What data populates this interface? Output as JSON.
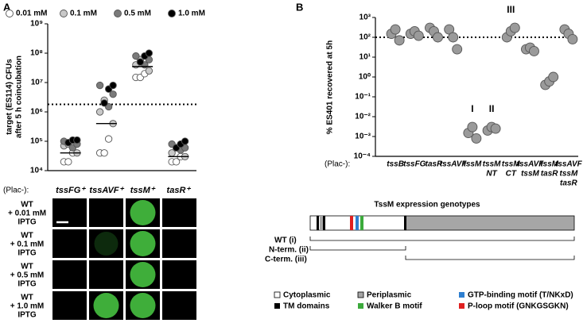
{
  "panel_labels": [
    "A",
    "B"
  ],
  "chart_data": [
    {
      "type": "strip",
      "log_scale": true,
      "y_label": [
        "target (ES114) CFUs",
        "after 5 h coincubation"
      ],
      "x_prefix": "(Plac-):",
      "categories": [
        "tssFG⁺",
        "tssAVF⁺",
        "tssM⁺",
        "tasR⁺"
      ],
      "ylim": [
        10000,
        1000000000
      ],
      "yticks": [
        {
          "value": 10000,
          "label": "10⁴"
        },
        {
          "value": 100000,
          "label": "10⁵"
        },
        {
          "value": 1000000,
          "label": "10⁶"
        },
        {
          "value": 10000000,
          "label": "10⁷"
        },
        {
          "value": 100000000,
          "label": "10⁸"
        },
        {
          "value": 1000000000,
          "label": "10⁹"
        }
      ],
      "threshold": 1800000,
      "medians": [
        40000,
        400000,
        35000000,
        30000
      ],
      "series": [
        {
          "name": "0.01 mM",
          "color": "#ffffff",
          "values": [
            [
              20000,
              20000,
              40000
            ],
            [
              40000,
              40000,
              120000
            ],
            [
              15000000,
              15000000,
              20000000
            ],
            [
              20000,
              20000,
              30000
            ]
          ]
        },
        {
          "name": "0.1 mM",
          "color": "#c8c8c8",
          "values": [
            [
              40000,
              70000,
              80000
            ],
            [
              400000,
              1000000,
              2500000
            ],
            [
              25000000,
              40000000,
              60000000
            ],
            [
              30000,
              40000,
              60000
            ]
          ]
        },
        {
          "name": "0.5 mM",
          "color": "#7a7a7a",
          "values": [
            [
              60000,
              80000,
              100000
            ],
            [
              1500000,
              4000000,
              8000000
            ],
            [
              40000000,
              60000000,
              80000000
            ],
            [
              50000,
              60000,
              80000
            ]
          ]
        },
        {
          "name": "1.0 mM",
          "color": "#000000",
          "values": [
            [
              90000,
              110000,
              110000
            ],
            [
              2000000,
              6000000,
              8000000
            ],
            [
              50000000,
              80000000,
              100000000
            ],
            [
              60000,
              80000,
              100000
            ]
          ]
        }
      ]
    },
    {
      "type": "strip",
      "log_scale": true,
      "y_label": [
        "% ES401 recovered at 5h"
      ],
      "x_prefix": "(Plac-):",
      "categories": [
        [
          "tssB"
        ],
        [
          "tssFG"
        ],
        [
          "tasR"
        ],
        [
          "tssAVF"
        ],
        [
          "tssM"
        ],
        [
          "tssM",
          "NT"
        ],
        [
          "tssM",
          "CT"
        ],
        [
          "tssAVF",
          "tssM"
        ],
        [
          "tssM",
          "tasR"
        ],
        [
          "tssAVF",
          "tssM",
          "tasR"
        ]
      ],
      "ylim": [
        0.0001,
        1000
      ],
      "yticks": [
        {
          "value": 0.0001,
          "label": "10⁻⁴"
        },
        {
          "value": 0.001,
          "label": "10⁻³"
        },
        {
          "value": 0.01,
          "label": "10⁻²"
        },
        {
          "value": 0.1,
          "label": "10⁻¹"
        },
        {
          "value": 1,
          "label": "10⁰"
        },
        {
          "value": 10,
          "label": "10¹"
        },
        {
          "value": 100,
          "label": "10²"
        },
        {
          "value": 1000,
          "label": "10³"
        }
      ],
      "threshold": 100,
      "annotations": [
        null,
        null,
        null,
        null,
        "I",
        "II",
        "III",
        null,
        null,
        null
      ],
      "series": [
        {
          "color": "#9a9a9a",
          "values": [
            [
              150,
              250,
              70
            ],
            [
              150,
              200,
              120
            ],
            [
              300,
              200,
              100
            ],
            [
              250,
              100,
              25
            ],
            [
              0.0015,
              0.003,
              0.0008
            ],
            [
              0.002,
              0.003,
              0.0025
            ],
            [
              100,
              200,
              300
            ],
            [
              25,
              30,
              20
            ],
            [
              0.4,
              0.6,
              1
            ],
            [
              250,
              150,
              80
            ]
          ]
        }
      ]
    }
  ],
  "microscopy": {
    "row_labels": [
      [
        "WT",
        "+ 0.01 mM",
        "IPTG"
      ],
      [
        "WT",
        "+ 0.1 mM",
        "IPTG"
      ],
      [
        "WT",
        "+ 0.5 mM",
        "IPTG"
      ],
      [
        "WT",
        "+ 1.0 mM",
        "IPTG"
      ]
    ]
  },
  "diagram": {
    "title": "TssM expression genotypes",
    "constructs": [
      "WT (i)",
      "N-term. (ii)",
      "C-term. (iii)"
    ],
    "legend": [
      "Cytoplasmic",
      "TM domains",
      "Periplasmic",
      "Walker B motif",
      "GTP-binding motif (T/NKxD)",
      "P-loop motif (GNKGSGKN)"
    ]
  }
}
